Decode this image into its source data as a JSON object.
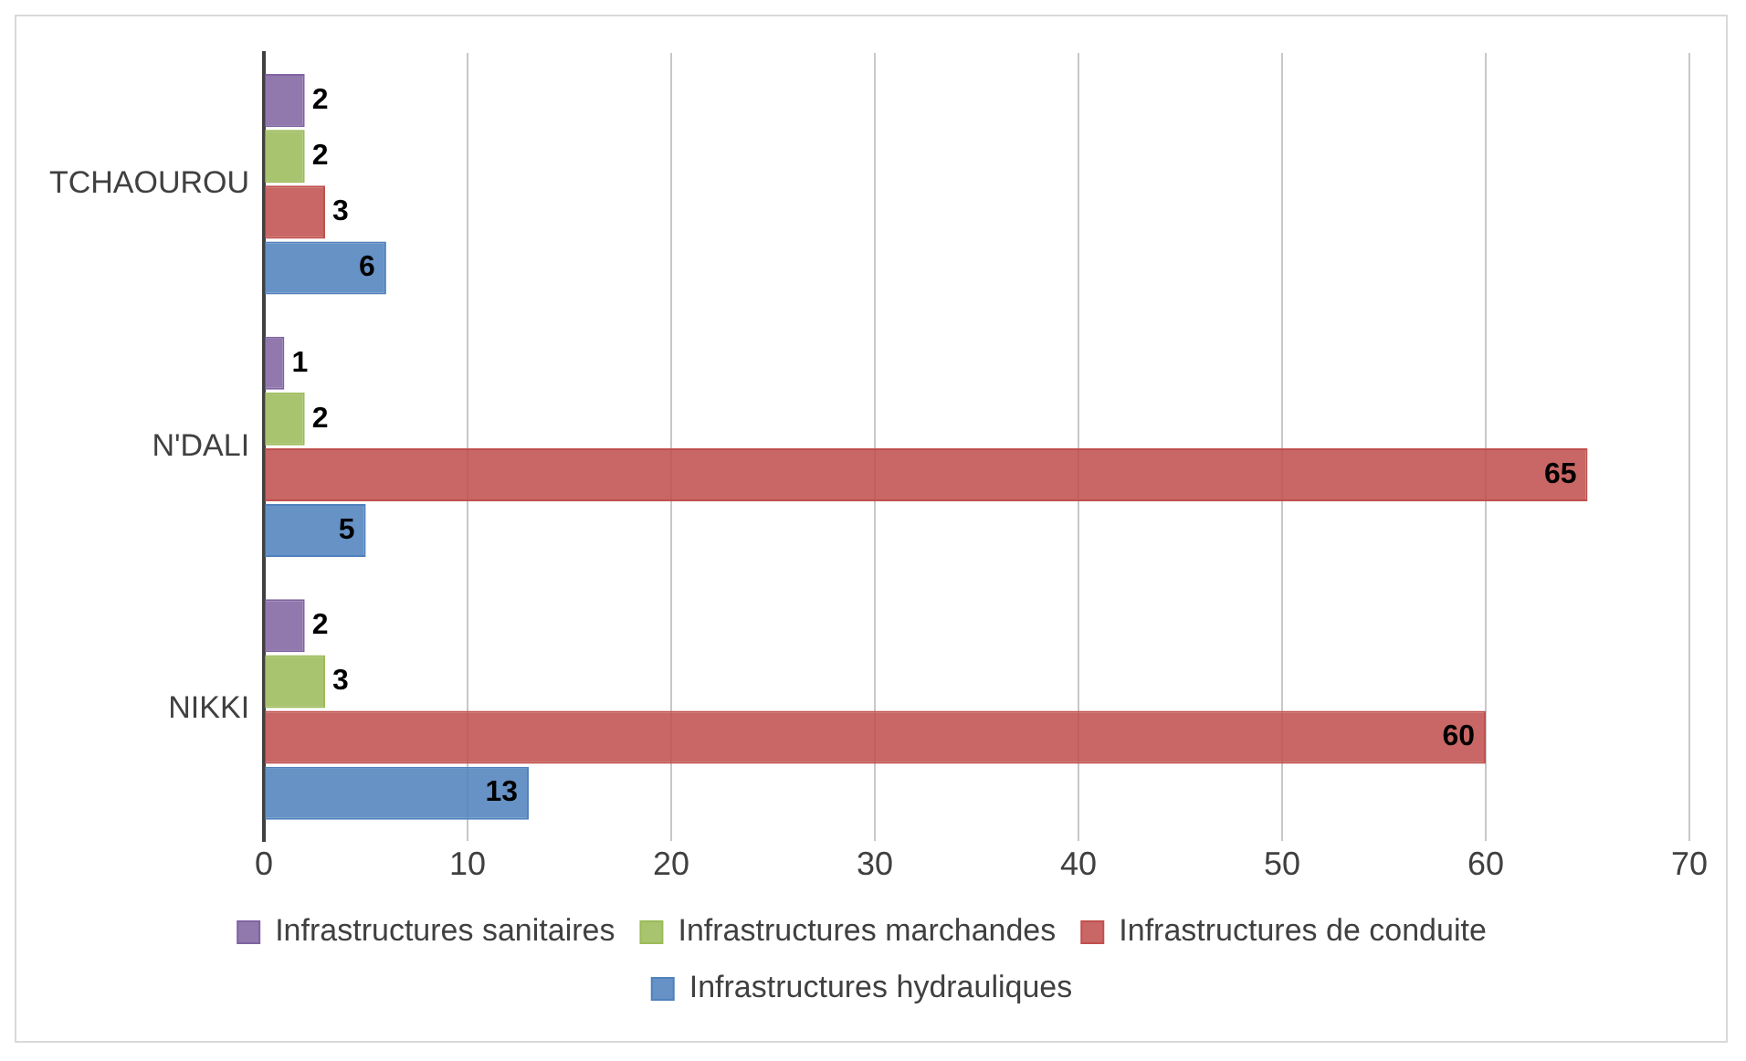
{
  "chart_data": {
    "type": "bar",
    "orientation": "horizontal",
    "categories": [
      "TCHAOUROU",
      "N'DALI",
      "NIKKI"
    ],
    "series": [
      {
        "name": "Infrastructures sanitaires",
        "color": "#8064a2",
        "values": [
          2,
          1,
          2
        ]
      },
      {
        "name": "Infrastructures marchandes",
        "color": "#9bbb59",
        "values": [
          2,
          2,
          3
        ]
      },
      {
        "name": "Infrastructures de conduite",
        "color": "#c0504d",
        "values": [
          3,
          65,
          60
        ]
      },
      {
        "name": "Infrastructures hydrauliques",
        "color": "#4f81bd",
        "values": [
          6,
          5,
          13
        ]
      }
    ],
    "xlim": [
      0,
      70
    ],
    "xticks": [
      0,
      10,
      20,
      30,
      40,
      50,
      60,
      70
    ],
    "grid": "x",
    "legend": "bottom",
    "data_labels": true
  }
}
